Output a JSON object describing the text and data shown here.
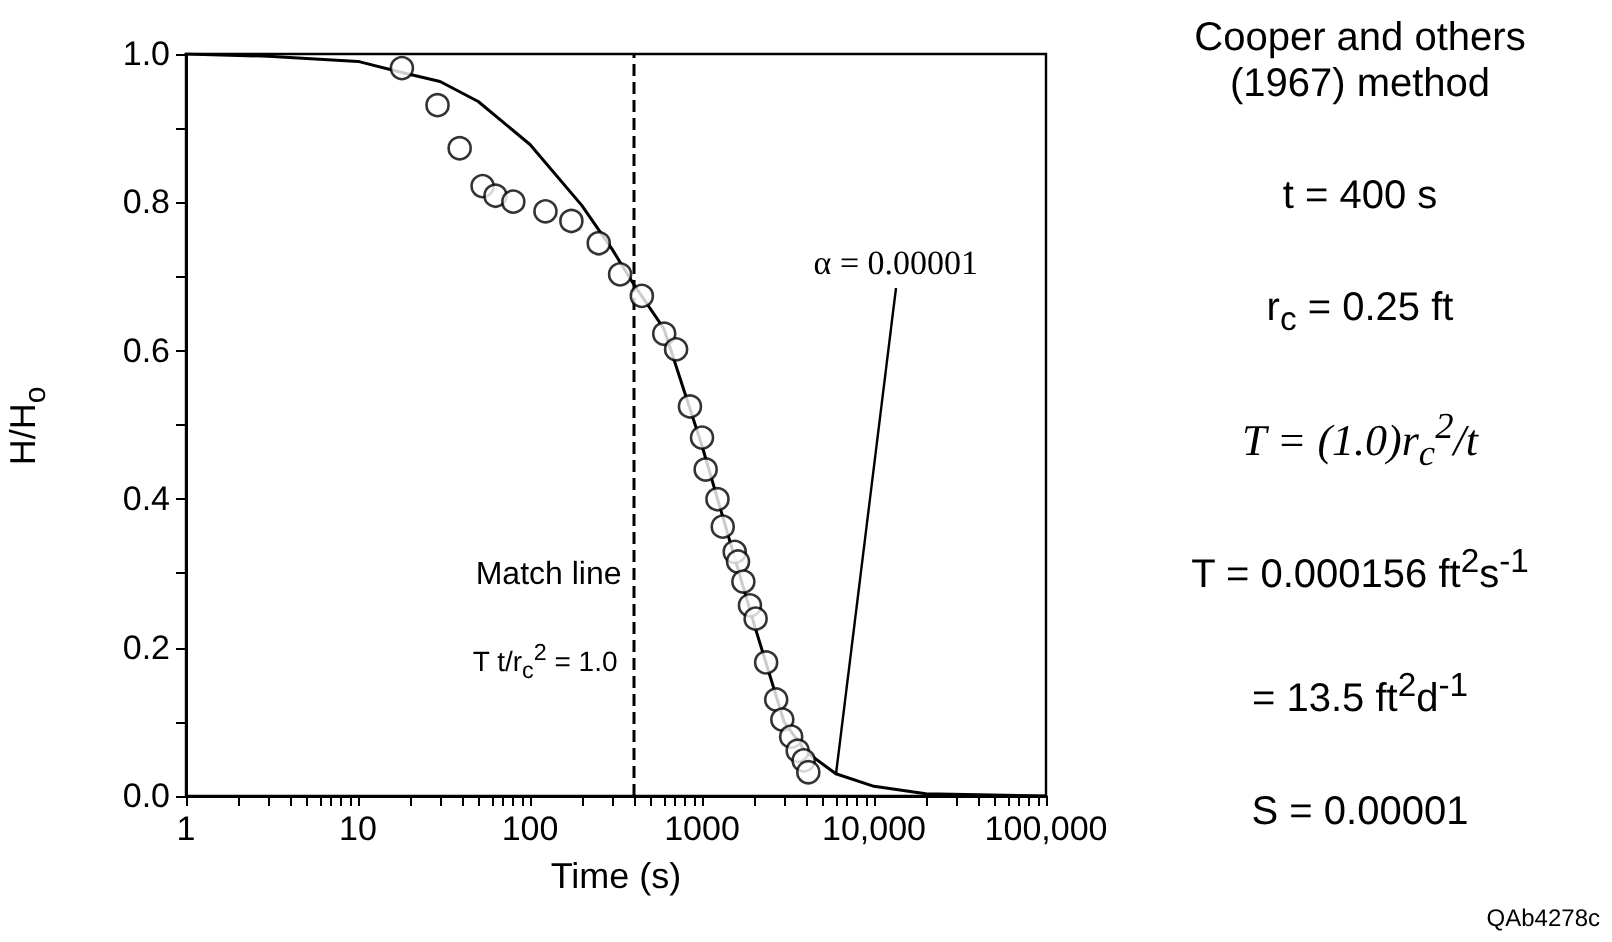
{
  "chart_data": {
    "type": "scatter",
    "xlabel": "Time (s)",
    "ylabel": "H/H$_{o}$",
    "log": "x",
    "grid": false,
    "xlim": [
      1,
      100000
    ],
    "ylim": [
      0,
      1
    ],
    "xticks": [
      1,
      {
        "value": 2,
        "label": null
      },
      {
        "value": 3,
        "label": null
      },
      {
        "value": 4,
        "label": null
      },
      {
        "value": 5,
        "label": null
      },
      {
        "value": 6,
        "label": null
      },
      {
        "value": 7,
        "label": null
      },
      {
        "value": 8,
        "label": null
      },
      {
        "value": 9,
        "label": null
      },
      10,
      {
        "value": 20,
        "label": null
      },
      {
        "value": 30,
        "label": null
      },
      {
        "value": 40,
        "label": null
      },
      {
        "value": 50,
        "label": null
      },
      {
        "value": 60,
        "label": null
      },
      {
        "value": 70,
        "label": null
      },
      {
        "value": 80,
        "label": null
      },
      {
        "value": 90,
        "label": null
      },
      100,
      {
        "value": 200,
        "label": null
      },
      {
        "value": 300,
        "label": null
      },
      {
        "value": 400,
        "label": null
      },
      {
        "value": 500,
        "label": null
      },
      {
        "value": 600,
        "label": null
      },
      {
        "value": 700,
        "label": null
      },
      {
        "value": 800,
        "label": null
      },
      {
        "value": 900,
        "label": null
      },
      1000,
      {
        "value": 2000,
        "label": null
      },
      {
        "value": 3000,
        "label": null
      },
      {
        "value": 4000,
        "label": null
      },
      {
        "value": 5000,
        "label": null
      },
      {
        "value": 6000,
        "label": null
      },
      {
        "value": 7000,
        "label": null
      },
      {
        "value": 8000,
        "label": null
      },
      {
        "value": 9000,
        "label": null
      },
      {
        "value": 10000,
        "label": "10,000"
      },
      {
        "value": 20000,
        "label": null
      },
      {
        "value": 30000,
        "label": null
      },
      {
        "value": 40000,
        "label": null
      },
      {
        "value": 50000,
        "label": null
      },
      {
        "value": 60000,
        "label": null
      },
      {
        "value": 70000,
        "label": null
      },
      {
        "value": 80000,
        "label": null
      },
      {
        "value": 90000,
        "label": null
      },
      {
        "value": 100000,
        "label": "100,000"
      }
    ],
    "yticks": [
      {
        "value": 0,
        "label": "0.0"
      },
      {
        "value": 0.1,
        "label": null
      },
      {
        "value": 0.2,
        "label": "0.2"
      },
      {
        "value": 0.3,
        "label": null
      },
      {
        "value": 0.4,
        "label": "0.4"
      },
      {
        "value": 0.5,
        "label": null
      },
      {
        "value": 0.6,
        "label": "0.6"
      },
      {
        "value": 0.7,
        "label": null
      },
      {
        "value": 0.8,
        "label": "0.8"
      },
      {
        "value": 0.9,
        "label": null
      },
      {
        "value": 1,
        "label": "1.0"
      }
    ],
    "series": [
      {
        "color": "#000000",
        "marker": "circle",
        "x": [
          18,
          29,
          39,
          53,
          63,
          80,
          123,
          174,
          251,
          334,
          447,
          603,
          707,
          851,
          1000,
          1050,
          1230,
          1320,
          1550,
          1620,
          1740,
          1900,
          2050,
          2360,
          2700,
          2930,
          3300,
          3600,
          3900,
          4150
        ],
        "values": [
          0.981,
          0.931,
          0.873,
          0.822,
          0.809,
          0.801,
          0.788,
          0.775,
          0.745,
          0.703,
          0.674,
          0.623,
          0.602,
          0.525,
          0.483,
          0.44,
          0.4,
          0.363,
          0.329,
          0.316,
          0.289,
          0.257,
          0.239,
          0.18,
          0.13,
          0.103,
          0.08,
          0.061,
          0.048,
          0.032
        ]
      },
      {
        "type": "line",
        "color": "#000000",
        "marker": "none",
        "line_style": "solid",
        "x": [
          1,
          3,
          10,
          18,
          30,
          50,
          100,
          200,
          300,
          400,
          600,
          1000,
          2000,
          3000,
          4000,
          6000,
          10000,
          20000,
          100000
        ],
        "values": [
          1.0,
          0.997,
          0.99,
          0.975,
          0.963,
          0.936,
          0.878,
          0.796,
          0.737,
          0.69,
          0.63,
          0.472,
          0.233,
          0.1,
          0.06,
          0.03,
          0.013,
          0.003,
          0
        ]
      }
    ],
    "ref_lines": [
      {
        "axis": "x",
        "value": 400,
        "label": "Match line",
        "color": "#000000",
        "line_style": "dashed"
      }
    ],
    "annotations": [
      {
        "text": "T t/r$_{c}$$^{2}$ = 1.0",
        "x": 400,
        "y": 0.18
      },
      {
        "text": "α = 0.00001",
        "x": 6000,
        "y": 0.03
      },
      "Cooper and others (1967) method",
      "t  =  400 s",
      "r$_{c}$  =  0.25 ft",
      "T = (1.0)r$_{c}$$^{2}$/t",
      "T = 0.000156 ft$^{2}$s$^{-1}$",
      "=  13.5 ft$^{2}$d$^{-1}$",
      "S = 0.00001",
      "QAb4278c"
    ]
  }
}
